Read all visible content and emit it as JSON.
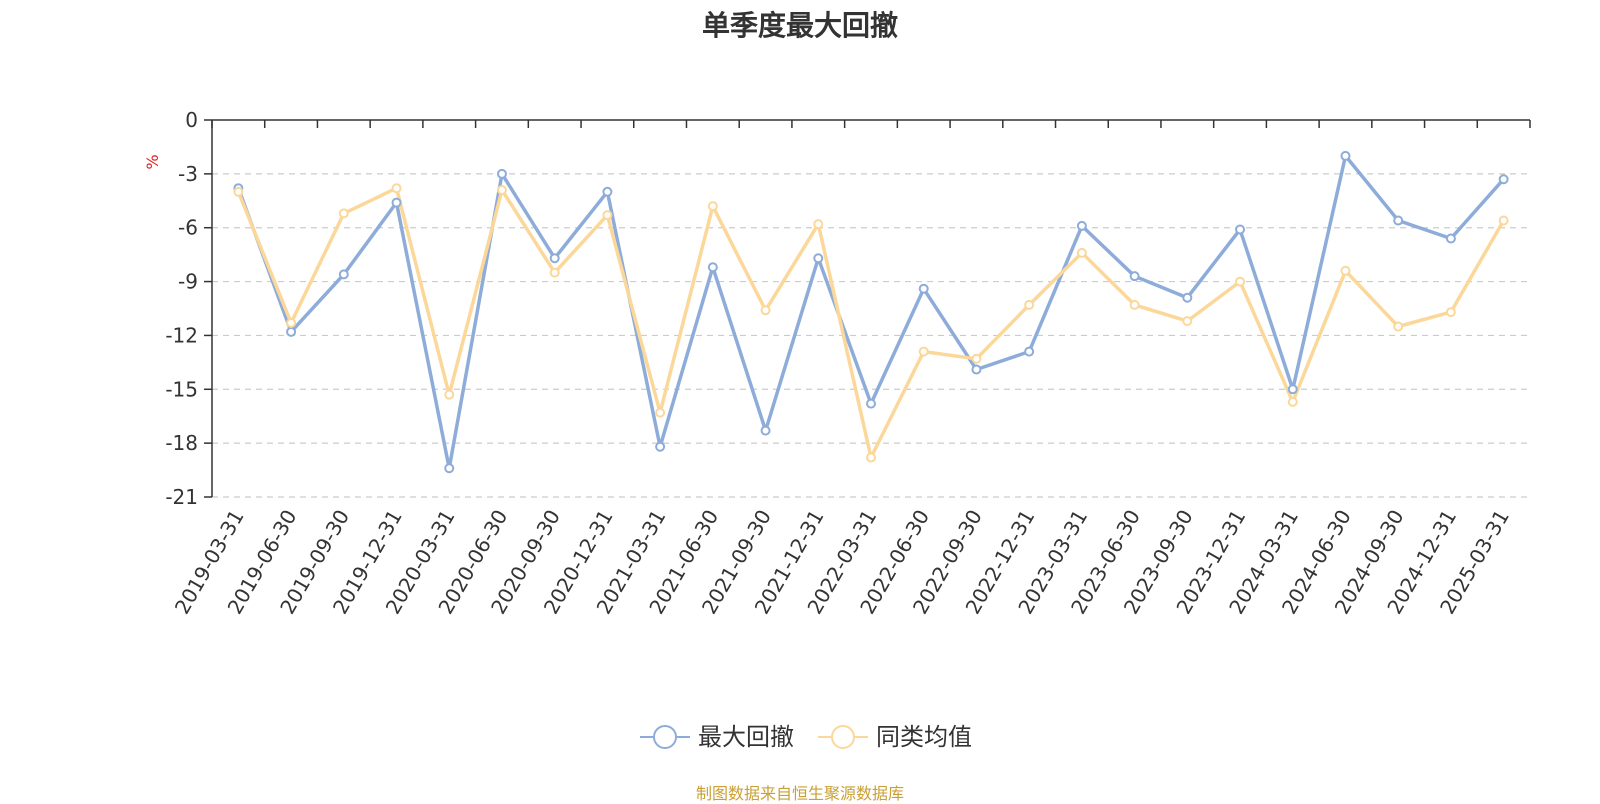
{
  "chart_data": {
    "type": "line",
    "title": "单季度最大回撤",
    "ylabel": "%",
    "ylim": [
      -21,
      0
    ],
    "yticks": [
      0,
      -3,
      -6,
      -9,
      -12,
      -15,
      -18,
      -21
    ],
    "grid": true,
    "legend_position": "bottom-center",
    "categories": [
      "2019-03-31",
      "2019-06-30",
      "2019-09-30",
      "2019-12-31",
      "2020-03-31",
      "2020-06-30",
      "2020-09-30",
      "2020-12-31",
      "2021-03-31",
      "2021-06-30",
      "2021-09-30",
      "2021-12-31",
      "2022-03-31",
      "2022-06-30",
      "2022-09-30",
      "2022-12-31",
      "2023-03-31",
      "2023-06-30",
      "2023-09-30",
      "2023-12-31",
      "2024-03-31",
      "2024-06-30",
      "2024-09-30",
      "2024-12-31",
      "2025-03-31"
    ],
    "series": [
      {
        "name": "最大回撤",
        "color": "#8eacd9",
        "values": [
          -3.8,
          -11.8,
          -8.6,
          -4.6,
          -19.4,
          -3.0,
          -7.7,
          -4.0,
          -18.2,
          -8.2,
          -17.3,
          -7.7,
          -15.8,
          -9.4,
          -13.9,
          -12.9,
          -5.9,
          -8.7,
          -9.9,
          -6.1,
          -15.0,
          -2.0,
          -5.6,
          -6.6,
          -3.3
        ]
      },
      {
        "name": "同类均值",
        "color": "#fbd899",
        "values": [
          -4.0,
          -11.3,
          -5.2,
          -3.8,
          -15.3,
          -3.9,
          -8.5,
          -5.3,
          -16.3,
          -4.8,
          -10.6,
          -5.8,
          -18.8,
          -12.9,
          -13.3,
          -10.3,
          -7.4,
          -10.3,
          -11.2,
          -9.0,
          -15.7,
          -8.4,
          -11.5,
          -10.7,
          -5.6
        ]
      }
    ]
  },
  "source_note": "制图数据来自恒生聚源数据库"
}
